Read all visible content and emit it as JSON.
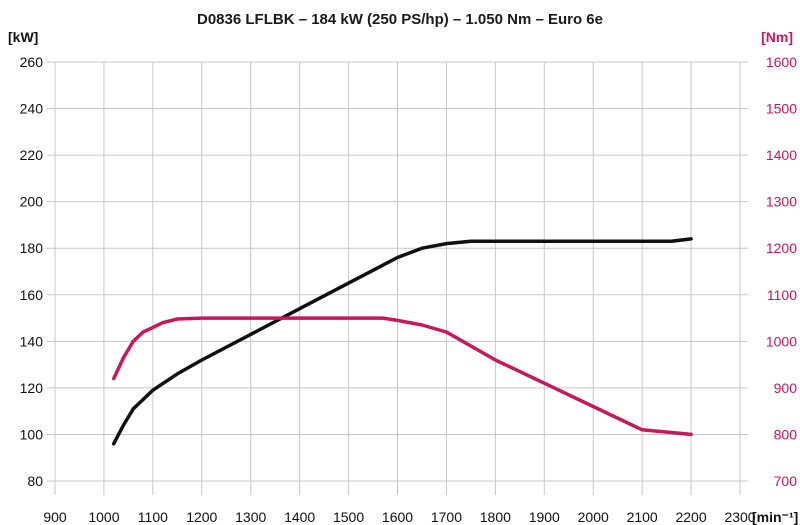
{
  "chart_data": {
    "type": "line",
    "title": "D0836 LFLBK – 184 kW (250 PS/hp) – 1.050 Nm – Euro 6e",
    "xlabel": "[min⁻¹]",
    "ylabel_left": "[kW]",
    "ylabel_right": "[Nm]",
    "xlim": [
      900,
      2300
    ],
    "xticks": [
      900,
      1000,
      1100,
      1200,
      1300,
      1400,
      1500,
      1600,
      1700,
      1800,
      1900,
      2000,
      2100,
      2200,
      2300
    ],
    "ylim_left": [
      80,
      260
    ],
    "yticks_left": [
      80,
      100,
      120,
      140,
      160,
      180,
      200,
      220,
      240,
      260
    ],
    "ylim_right": [
      700,
      1600
    ],
    "yticks_right": [
      700,
      800,
      900,
      1000,
      1100,
      1200,
      1300,
      1400,
      1500,
      1600
    ],
    "grid": true,
    "series": [
      {
        "axis": "left",
        "color": "#111111",
        "x": [
          1020,
          1040,
          1060,
          1080,
          1100,
          1150,
          1200,
          1300,
          1400,
          1500,
          1600,
          1650,
          1700,
          1750,
          1800,
          1900,
          2000,
          2100,
          2160,
          2200
        ],
        "values": [
          96,
          104,
          111,
          115,
          119,
          126,
          132,
          143,
          154,
          165,
          176,
          180,
          182,
          183,
          183,
          183,
          183,
          183,
          183,
          184
        ]
      },
      {
        "axis": "right",
        "color": "#c8175d",
        "x": [
          1020,
          1040,
          1060,
          1080,
          1100,
          1120,
          1150,
          1200,
          1300,
          1400,
          1500,
          1570,
          1600,
          1650,
          1700,
          1750,
          1800,
          1900,
          2000,
          2100,
          2200
        ],
        "values": [
          920,
          965,
          1000,
          1020,
          1030,
          1040,
          1048,
          1050,
          1050,
          1050,
          1050,
          1050,
          1045,
          1035,
          1020,
          990,
          960,
          910,
          860,
          810,
          800
        ]
      }
    ]
  },
  "colors": {
    "left_axis": "#111111",
    "right_axis": "#c8175d",
    "grid": "#c7c7c7"
  }
}
